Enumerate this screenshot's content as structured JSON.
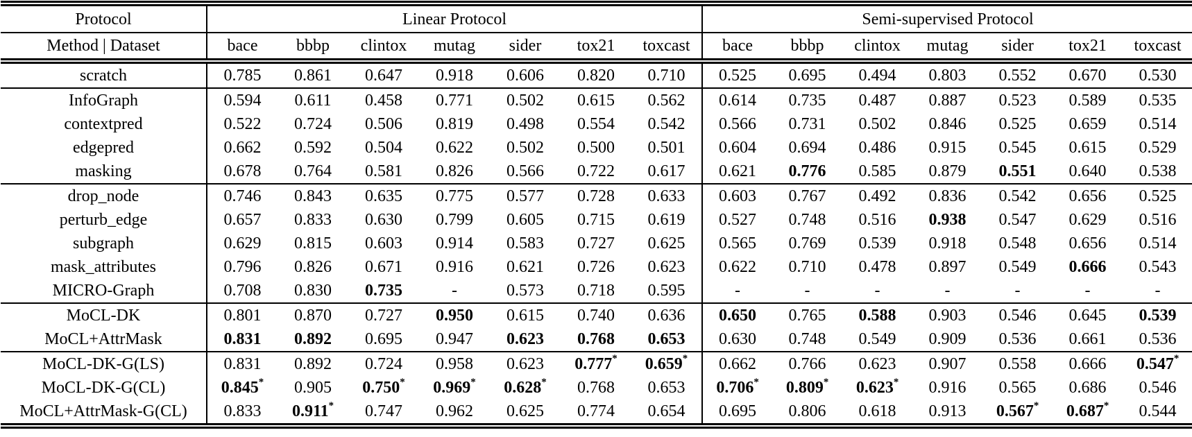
{
  "table": {
    "corner_top_label": "Protocol",
    "corner_bottom_label": "Method | Dataset",
    "groups": [
      {
        "label": "Linear Protocol",
        "datasets": [
          "bace",
          "bbbp",
          "clintox",
          "mutag",
          "sider",
          "tox21",
          "toxcast"
        ]
      },
      {
        "label": "Semi-supervised Protocol",
        "datasets": [
          "bace",
          "bbbp",
          "clintox",
          "mutag",
          "sider",
          "tox21",
          "toxcast"
        ]
      }
    ],
    "sections": [
      {
        "rows": [
          {
            "method": "scratch",
            "linear": [
              "0.785",
              "0.861",
              "0.647",
              "0.918",
              "0.606",
              "0.820",
              "0.710"
            ],
            "semi": [
              "0.525",
              "0.695",
              "0.494",
              "0.803",
              "0.552",
              "0.670",
              "0.530"
            ]
          }
        ]
      },
      {
        "rows": [
          {
            "method": "InfoGraph",
            "linear": [
              "0.594",
              "0.611",
              "0.458",
              "0.771",
              "0.502",
              "0.615",
              "0.562"
            ],
            "semi": [
              "0.614",
              "0.735",
              "0.487",
              "0.887",
              "0.523",
              "0.589",
              "0.535"
            ]
          },
          {
            "method": "contextpred",
            "linear": [
              "0.522",
              "0.724",
              "0.506",
              "0.819",
              "0.498",
              "0.554",
              "0.542"
            ],
            "semi": [
              "0.566",
              "0.731",
              "0.502",
              "0.846",
              "0.525",
              "0.659",
              "0.514"
            ]
          },
          {
            "method": "edgepred",
            "linear": [
              "0.662",
              "0.592",
              "0.504",
              "0.622",
              "0.502",
              "0.500",
              "0.501"
            ],
            "semi": [
              "0.604",
              "0.694",
              "0.486",
              "0.915",
              "0.545",
              "0.615",
              "0.529"
            ]
          },
          {
            "method": "masking",
            "linear": [
              "0.678",
              "0.764",
              "0.581",
              "0.826",
              "0.566",
              "0.722",
              "0.617"
            ],
            "semi": [
              "0.621",
              {
                "v": "0.776",
                "bold": true
              },
              "0.585",
              "0.879",
              {
                "v": "0.551",
                "bold": true
              },
              "0.640",
              "0.538"
            ]
          }
        ]
      },
      {
        "rows": [
          {
            "method": "drop_node",
            "linear": [
              "0.746",
              "0.843",
              "0.635",
              "0.775",
              "0.577",
              "0.728",
              "0.633"
            ],
            "semi": [
              "0.603",
              "0.767",
              "0.492",
              "0.836",
              "0.542",
              "0.656",
              "0.525"
            ]
          },
          {
            "method": "perturb_edge",
            "linear": [
              "0.657",
              "0.833",
              "0.630",
              "0.799",
              "0.605",
              "0.715",
              "0.619"
            ],
            "semi": [
              "0.527",
              "0.748",
              "0.516",
              {
                "v": "0.938",
                "bold": true
              },
              "0.547",
              "0.629",
              "0.516"
            ]
          },
          {
            "method": "subgraph",
            "linear": [
              "0.629",
              "0.815",
              "0.603",
              "0.914",
              "0.583",
              "0.727",
              "0.625"
            ],
            "semi": [
              "0.565",
              "0.769",
              "0.539",
              "0.918",
              "0.548",
              "0.656",
              "0.514"
            ]
          },
          {
            "method": "mask_attributes",
            "linear": [
              "0.796",
              "0.826",
              "0.671",
              "0.916",
              "0.621",
              "0.726",
              "0.623"
            ],
            "semi": [
              "0.622",
              "0.710",
              "0.478",
              "0.897",
              "0.549",
              {
                "v": "0.666",
                "bold": true
              },
              "0.543"
            ]
          },
          {
            "method": "MICRO-Graph",
            "linear": [
              "0.708",
              "0.830",
              {
                "v": "0.735",
                "bold": true
              },
              "-",
              "0.573",
              "0.718",
              "0.595"
            ],
            "semi": [
              "-",
              "-",
              "-",
              "-",
              "-",
              "-",
              "-"
            ]
          }
        ]
      },
      {
        "rows": [
          {
            "method": "MoCL-DK",
            "linear": [
              "0.801",
              "0.870",
              "0.727",
              {
                "v": "0.950",
                "bold": true
              },
              "0.615",
              "0.740",
              "0.636"
            ],
            "semi": [
              {
                "v": "0.650",
                "bold": true
              },
              "0.765",
              {
                "v": "0.588",
                "bold": true
              },
              "0.903",
              "0.546",
              "0.645",
              {
                "v": "0.539",
                "bold": true
              }
            ]
          },
          {
            "method": "MoCL+AttrMask",
            "linear": [
              {
                "v": "0.831",
                "bold": true
              },
              {
                "v": "0.892",
                "bold": true
              },
              "0.695",
              "0.947",
              {
                "v": "0.623",
                "bold": true
              },
              {
                "v": "0.768",
                "bold": true
              },
              {
                "v": "0.653",
                "bold": true
              }
            ],
            "semi": [
              "0.630",
              "0.748",
              "0.549",
              "0.909",
              "0.536",
              "0.661",
              "0.536"
            ]
          }
        ]
      },
      {
        "rows": [
          {
            "method": "MoCL-DK-G(LS)",
            "linear": [
              "0.831",
              "0.892",
              "0.724",
              "0.958",
              "0.623",
              {
                "v": "0.777",
                "bold": true,
                "star": true
              },
              {
                "v": "0.659",
                "bold": true,
                "star": true
              }
            ],
            "semi": [
              "0.662",
              "0.766",
              "0.623",
              "0.907",
              "0.558",
              "0.666",
              {
                "v": "0.547",
                "bold": true,
                "star": true
              }
            ]
          },
          {
            "method": "MoCL-DK-G(CL)",
            "linear": [
              {
                "v": "0.845",
                "bold": true,
                "star": true
              },
              "0.905",
              {
                "v": "0.750",
                "bold": true,
                "star": true
              },
              {
                "v": "0.969",
                "bold": true,
                "star": true
              },
              {
                "v": "0.628",
                "bold": true,
                "star": true
              },
              "0.768",
              "0.653"
            ],
            "semi": [
              {
                "v": "0.706",
                "bold": true,
                "star": true
              },
              {
                "v": "0.809",
                "bold": true,
                "star": true
              },
              {
                "v": "0.623",
                "bold": true,
                "star": true
              },
              "0.916",
              "0.565",
              "0.686",
              "0.546"
            ]
          },
          {
            "method": "MoCL+AttrMask-G(CL)",
            "linear": [
              "0.833",
              {
                "v": "0.911",
                "bold": true,
                "star": true
              },
              "0.747",
              "0.962",
              "0.625",
              "0.774",
              "0.654"
            ],
            "semi": [
              "0.695",
              "0.806",
              "0.618",
              "0.913",
              {
                "v": "0.567",
                "bold": true,
                "star": true
              },
              {
                "v": "0.687",
                "bold": true,
                "star": true
              },
              "0.544"
            ]
          }
        ]
      }
    ]
  }
}
